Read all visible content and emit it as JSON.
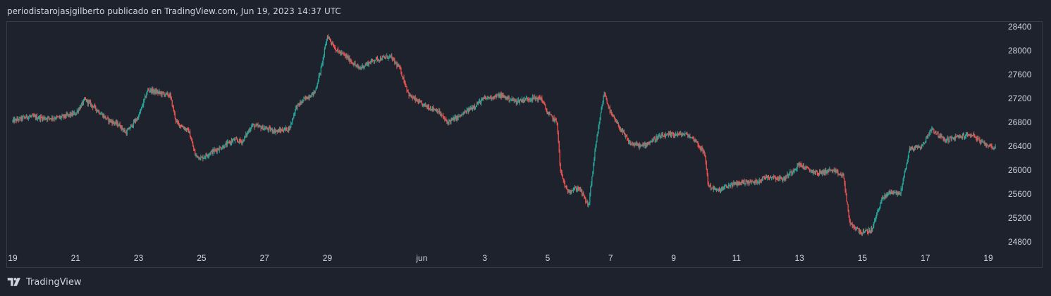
{
  "header": {
    "caption": "periodistarojasjgilberto publicado en TradingView.com, Jun 19, 2023 14:37 UTC"
  },
  "footer": {
    "brand": "TradingView",
    "logo_icon": "tradingview-logo-icon"
  },
  "colors": {
    "up": "#26a69a",
    "down": "#ef5350",
    "background": "#1e222d",
    "axis_text": "#d1d4dc",
    "border": "#363a45"
  },
  "chart_data": {
    "type": "candlestick",
    "title": "",
    "ylim": [
      24700,
      28500
    ],
    "y_ticks": [
      28400,
      28000,
      27600,
      27200,
      26800,
      26400,
      26000,
      25600,
      25200,
      24800
    ],
    "x_ticks": [
      {
        "label": "19",
        "day": 19
      },
      {
        "label": "21",
        "day": 21
      },
      {
        "label": "23",
        "day": 23
      },
      {
        "label": "25",
        "day": 25
      },
      {
        "label": "27",
        "day": 27
      },
      {
        "label": "29",
        "day": 29
      },
      {
        "label": "jun",
        "day": 32
      },
      {
        "label": "3",
        "day": 34
      },
      {
        "label": "5",
        "day": 36
      },
      {
        "label": "7",
        "day": 38
      },
      {
        "label": "9",
        "day": 40
      },
      {
        "label": "11",
        "day": 42
      },
      {
        "label": "13",
        "day": 44
      },
      {
        "label": "15",
        "day": 46
      },
      {
        "label": "17",
        "day": 48
      },
      {
        "label": "19",
        "day": 50
      }
    ],
    "x_range_days": [
      19,
      50.25
    ],
    "close_path": [
      [
        19.0,
        26820
      ],
      [
        19.5,
        26900
      ],
      [
        20.0,
        26870
      ],
      [
        20.5,
        26880
      ],
      [
        21.0,
        26950
      ],
      [
        21.3,
        27180
      ],
      [
        21.6,
        27050
      ],
      [
        22.0,
        26850
      ],
      [
        22.4,
        26750
      ],
      [
        22.6,
        26620
      ],
      [
        23.0,
        26900
      ],
      [
        23.3,
        27350
      ],
      [
        23.6,
        27300
      ],
      [
        24.0,
        27250
      ],
      [
        24.2,
        26800
      ],
      [
        24.6,
        26650
      ],
      [
        24.8,
        26250
      ],
      [
        25.0,
        26200
      ],
      [
        25.3,
        26300
      ],
      [
        25.7,
        26400
      ],
      [
        26.0,
        26500
      ],
      [
        26.3,
        26480
      ],
      [
        26.6,
        26750
      ],
      [
        27.0,
        26700
      ],
      [
        27.4,
        26650
      ],
      [
        27.8,
        26700
      ],
      [
        28.0,
        27050
      ],
      [
        28.3,
        27200
      ],
      [
        28.6,
        27300
      ],
      [
        28.8,
        27700
      ],
      [
        29.0,
        28250
      ],
      [
        29.3,
        28000
      ],
      [
        29.6,
        27900
      ],
      [
        30.0,
        27700
      ],
      [
        30.5,
        27850
      ],
      [
        31.0,
        27900
      ],
      [
        31.3,
        27700
      ],
      [
        31.6,
        27250
      ],
      [
        32.0,
        27100
      ],
      [
        32.5,
        27000
      ],
      [
        32.8,
        26800
      ],
      [
        33.2,
        26900
      ],
      [
        33.6,
        27050
      ],
      [
        34.0,
        27200
      ],
      [
        34.5,
        27250
      ],
      [
        35.0,
        27150
      ],
      [
        35.4,
        27200
      ],
      [
        35.8,
        27200
      ],
      [
        36.0,
        26950
      ],
      [
        36.3,
        26800
      ],
      [
        36.4,
        26000
      ],
      [
        36.6,
        25650
      ],
      [
        37.0,
        25700
      ],
      [
        37.3,
        25400
      ],
      [
        37.5,
        26300
      ],
      [
        37.7,
        27000
      ],
      [
        37.8,
        27300
      ],
      [
        38.0,
        26950
      ],
      [
        38.3,
        26700
      ],
      [
        38.6,
        26450
      ],
      [
        39.0,
        26400
      ],
      [
        39.5,
        26550
      ],
      [
        40.0,
        26600
      ],
      [
        40.4,
        26600
      ],
      [
        40.7,
        26500
      ],
      [
        41.0,
        26250
      ],
      [
        41.1,
        25750
      ],
      [
        41.4,
        25650
      ],
      [
        41.8,
        25750
      ],
      [
        42.2,
        25800
      ],
      [
        42.6,
        25800
      ],
      [
        43.0,
        25900
      ],
      [
        43.5,
        25850
      ],
      [
        44.0,
        26100
      ],
      [
        44.3,
        26000
      ],
      [
        44.6,
        25950
      ],
      [
        45.0,
        26000
      ],
      [
        45.4,
        25900
      ],
      [
        45.6,
        25100
      ],
      [
        46.0,
        24950
      ],
      [
        46.3,
        25000
      ],
      [
        46.6,
        25500
      ],
      [
        46.9,
        25650
      ],
      [
        47.2,
        25600
      ],
      [
        47.5,
        26350
      ],
      [
        47.9,
        26400
      ],
      [
        48.2,
        26700
      ],
      [
        48.6,
        26500
      ],
      [
        49.0,
        26550
      ],
      [
        49.5,
        26600
      ],
      [
        49.8,
        26450
      ],
      [
        50.0,
        26420
      ],
      [
        50.2,
        26380
      ]
    ]
  }
}
